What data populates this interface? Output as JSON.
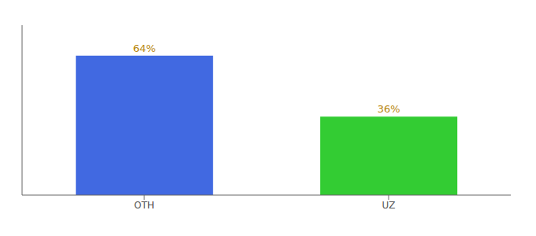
{
  "chart_data": {
    "type": "bar",
    "categories": [
      "OTH",
      "UZ"
    ],
    "values": [
      64,
      36
    ],
    "colors": [
      "#4169E1",
      "#33CC33"
    ],
    "data_labels": true,
    "value_labels": [
      "64%",
      "36%"
    ],
    "ylim": [
      0,
      78
    ],
    "tick_labels": "x"
  }
}
